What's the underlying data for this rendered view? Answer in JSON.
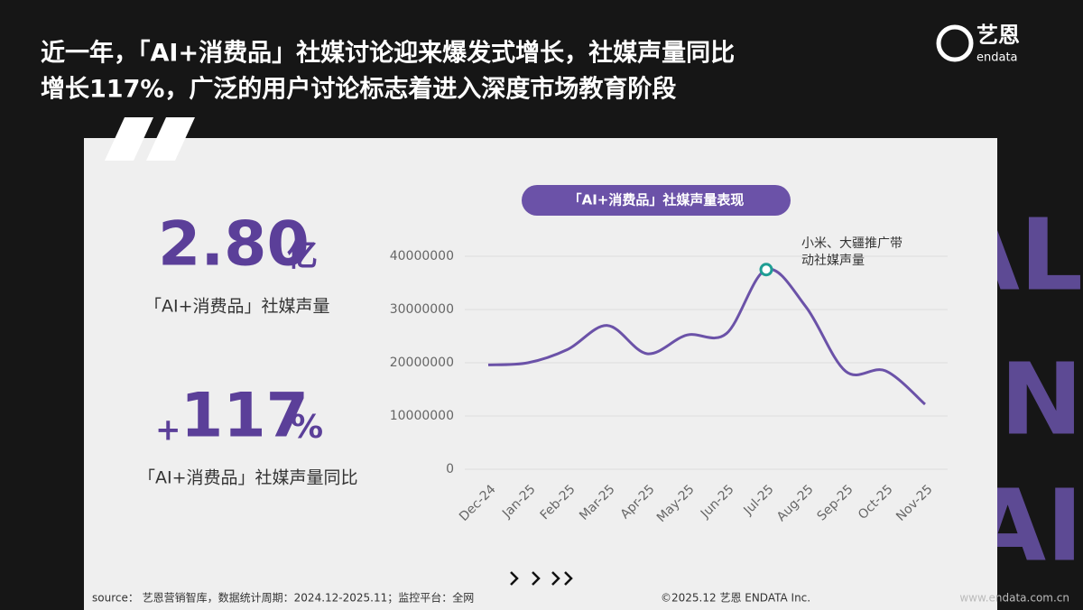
{
  "header": {
    "title_lines": [
      "近一年，「AI+消费品」社媒讨论迎来爆发式增长，社媒声量同比",
      "增长117%，广泛的用户讨论标志着进入深度市场教育阶段"
    ],
    "logo_cn": "艺恩",
    "logo_en": "endata"
  },
  "stats": [
    {
      "value": "2.80",
      "unit": "亿",
      "label": "「AI+消费品」社媒声量"
    },
    {
      "sign": "+",
      "value": "117",
      "unit": "%",
      "label": "「AI+消费品」社媒声量同比"
    }
  ],
  "background_letters": [
    "AL",
    "EN",
    "AI"
  ],
  "chart_data": {
    "type": "line",
    "title": "「AI+消费品」社媒声量表现",
    "categories": [
      "Dec-24",
      "Jan-25",
      "Feb-25",
      "Mar-25",
      "Apr-25",
      "May-25",
      "Jun-25",
      "Jul-25",
      "Aug-25",
      "Sep-25",
      "Oct-25",
      "Nov-25"
    ],
    "series": [
      {
        "name": "社媒声量",
        "color": "#6b52a8",
        "values": [
          19600000,
          20000000,
          22500000,
          27000000,
          21700000,
          25200000,
          25500000,
          37500000,
          30500000,
          18400000,
          18500000,
          12200000
        ]
      }
    ],
    "ylim": [
      0,
      40000000
    ],
    "yticks": [
      0,
      10000000,
      20000000,
      30000000,
      40000000
    ],
    "grid": true,
    "annotation": {
      "category_index": 7,
      "lines": [
        "小米、大疆推广带",
        "动社媒声量"
      ],
      "color": "#1f9e94"
    }
  },
  "footer": {
    "source": "source： 艺恩营销智库，数据统计周期：2024.12-2025.11；监控平台：全网",
    "copyright": "©2025.12  艺恩 ENDATA Inc.",
    "url": "www.endata.com.cn"
  }
}
